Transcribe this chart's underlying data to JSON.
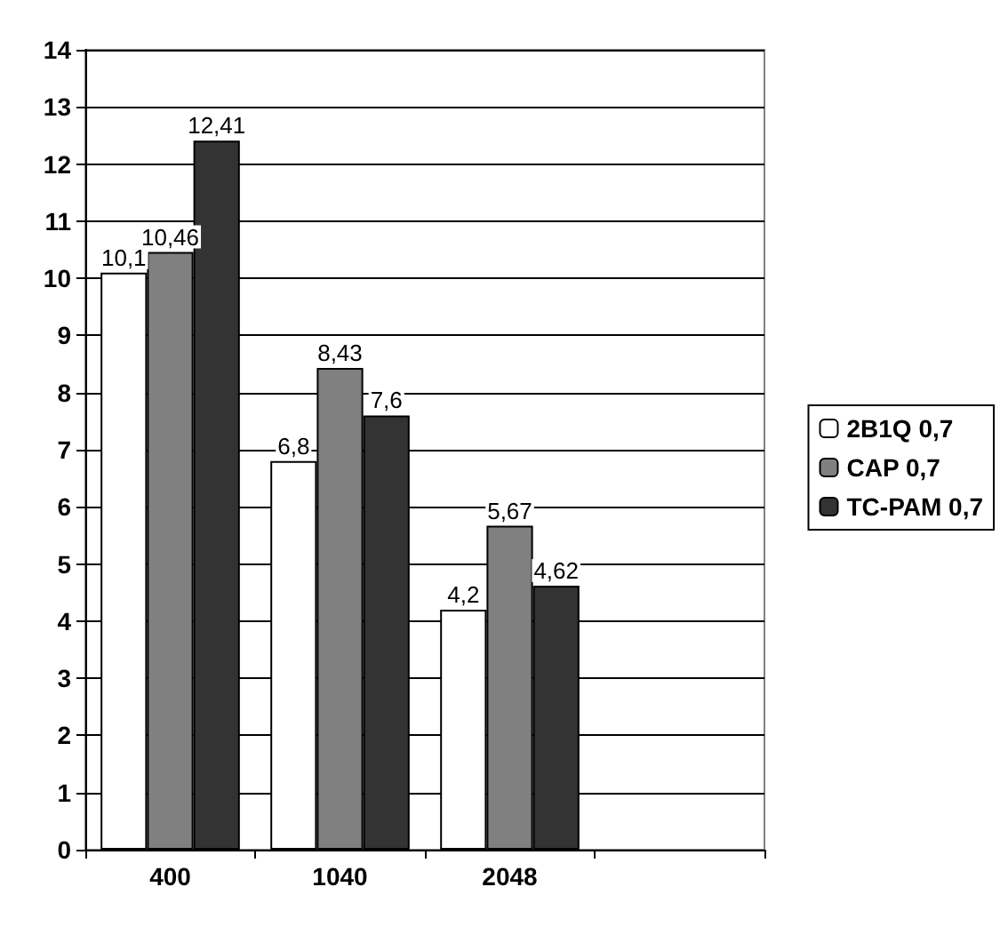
{
  "chart_data": {
    "type": "bar",
    "categories": [
      "400",
      "1040",
      "2048",
      null
    ],
    "series": [
      {
        "name": "2B1Q 0,7",
        "color": "#ffffff",
        "values": [
          10.1,
          6.8,
          4.2,
          null
        ],
        "value_labels": [
          "10,1",
          "6,8",
          "4,2",
          null
        ]
      },
      {
        "name": "CAP 0,7",
        "color": "#808080",
        "values": [
          10.46,
          8.43,
          5.67,
          null
        ],
        "value_labels": [
          "10,46",
          "8,43",
          "5,67",
          null
        ]
      },
      {
        "name": "TC-PAM 0,7",
        "color": "#333333",
        "values": [
          12.41,
          7.6,
          4.62,
          null
        ],
        "value_labels": [
          "12,41",
          "7,6",
          "4,62",
          null
        ]
      }
    ],
    "ylim": [
      0,
      14
    ],
    "yticks": [
      0,
      1,
      2,
      3,
      4,
      5,
      6,
      7,
      8,
      9,
      10,
      11,
      12,
      13,
      14
    ],
    "grid": "y",
    "legend": "right"
  }
}
